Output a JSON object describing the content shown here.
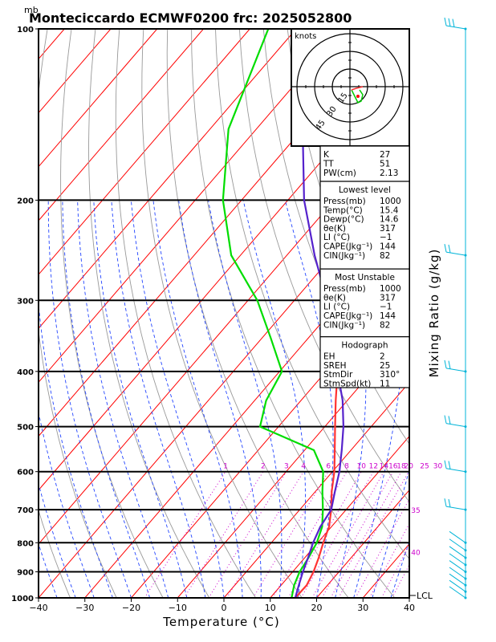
{
  "title": "Monteciccardo ECMWF0200 frc: 2025052800",
  "pressure_unit": "mb",
  "x_axis_label": "Temperature (°C)",
  "right_axis_label": "Mixing Ratio (g/kg)",
  "lcl_label": "LCL",
  "hodograph": {
    "unit_label": "knots",
    "ring_labels": [
      "15",
      "30",
      "45"
    ]
  },
  "indices": [
    {
      "label": "K",
      "value": "27"
    },
    {
      "label": "TT",
      "value": "51"
    },
    {
      "label": "PW(cm)",
      "value": "2.13"
    }
  ],
  "lowest_level": {
    "header": "Lowest level",
    "rows": [
      {
        "label": "Press(mb)",
        "value": "1000"
      },
      {
        "label": "Temp(°C)",
        "value": "15.4"
      },
      {
        "label": "Dewp(°C)",
        "value": "14.6"
      },
      {
        "label": "θe(K)",
        "value": "317"
      },
      {
        "label": "LI (°C)",
        "value": "−1"
      },
      {
        "label": "CAPE(Jkg⁻¹)",
        "value": "144"
      },
      {
        "label": "CIN(Jkg⁻¹)",
        "value": "82"
      }
    ]
  },
  "most_unstable": {
    "header": "Most Unstable",
    "rows": [
      {
        "label": "Press(mb)",
        "value": "1000"
      },
      {
        "label": "θe(K)",
        "value": "317"
      },
      {
        "label": "LI (°C)",
        "value": "−1"
      },
      {
        "label": "CAPE(Jkg⁻¹)",
        "value": "144"
      },
      {
        "label": "CIN(Jkg⁻¹)",
        "value": "82"
      }
    ]
  },
  "hodograph_box": {
    "header": "Hodograph",
    "rows": [
      {
        "label": "EH",
        "value": "2"
      },
      {
        "label": "SREH",
        "value": "25"
      },
      {
        "label": "StmDir",
        "value": "310°"
      },
      {
        "label": "StmSpd(kt)",
        "value": "11"
      }
    ]
  },
  "mixing_ratio_labels": [
    "1",
    "2",
    "3",
    "4",
    "6",
    "8",
    "10",
    "12",
    "14",
    "16",
    "18",
    "20",
    "25",
    "30",
    "35",
    "40"
  ],
  "colors": {
    "temperature": "#ff3333",
    "dewpoint": "#00dd00",
    "parcel": "#5522cc",
    "isotherm": "#ff0000",
    "dry_adiabat": "#999999",
    "moist_adiabat": "#2244ff",
    "mixing_ratio": "#cc00cc",
    "wind_barb": "#00b4d8"
  },
  "chart_data": {
    "type": "skew-t",
    "x_axis": {
      "label": "Temperature (°C)",
      "ticks": [
        -40,
        -30,
        -20,
        -10,
        0,
        10,
        20,
        30,
        40
      ],
      "range": [
        -40,
        40
      ]
    },
    "y_axis": {
      "label": "mb",
      "ticks": [
        100,
        200,
        300,
        400,
        500,
        600,
        700,
        800,
        900,
        1000
      ],
      "scale": "log",
      "range": [
        1000,
        100
      ]
    },
    "series": [
      {
        "key": "temperature",
        "points": [
          [
            1000,
            15.4
          ],
          [
            950,
            15.5
          ],
          [
            900,
            14.5
          ],
          [
            850,
            13.0
          ],
          [
            800,
            11.2
          ],
          [
            750,
            9.5
          ],
          [
            700,
            6.8
          ],
          [
            650,
            3.5
          ],
          [
            600,
            0.4
          ],
          [
            550,
            -3.5
          ],
          [
            500,
            -7.8
          ],
          [
            450,
            -12.5
          ],
          [
            400,
            -17.5
          ],
          [
            350,
            -24.5
          ],
          [
            300,
            -32.5
          ],
          [
            250,
            -42.5
          ],
          [
            200,
            -51.0
          ],
          [
            150,
            -58.0
          ],
          [
            100,
            -64.0
          ]
        ]
      },
      {
        "key": "dewpoint",
        "points": [
          [
            1000,
            14.6
          ],
          [
            950,
            12.8
          ],
          [
            900,
            11.5
          ],
          [
            850,
            10.8
          ],
          [
            800,
            9.8
          ],
          [
            750,
            8.0
          ],
          [
            700,
            5.0
          ],
          [
            650,
            1.5
          ],
          [
            600,
            -2.0
          ],
          [
            550,
            -8.0
          ],
          [
            500,
            -24.0
          ],
          [
            450,
            -27.5
          ],
          [
            400,
            -29.5
          ],
          [
            350,
            -38.0
          ],
          [
            300,
            -48.0
          ],
          [
            250,
            -62.0
          ],
          [
            200,
            -74.0
          ],
          [
            150,
            -86.0
          ],
          [
            100,
            -96.0
          ]
        ]
      },
      {
        "key": "parcel",
        "points": [
          [
            1000,
            15.4
          ],
          [
            950,
            13.8
          ],
          [
            900,
            12.2
          ],
          [
            850,
            10.7
          ],
          [
            800,
            9.0
          ],
          [
            750,
            7.6
          ],
          [
            700,
            6.8
          ],
          [
            650,
            4.2
          ],
          [
            600,
            1.5
          ],
          [
            550,
            -2.0
          ],
          [
            500,
            -6.0
          ],
          [
            450,
            -11.0
          ],
          [
            400,
            -17.5
          ],
          [
            350,
            -24.0
          ],
          [
            300,
            -33.0
          ],
          [
            250,
            -44.0
          ],
          [
            200,
            -56.5
          ],
          [
            150,
            -70.0
          ],
          [
            120,
            -80.0
          ],
          [
            110,
            -85.0
          ]
        ]
      }
    ]
  }
}
